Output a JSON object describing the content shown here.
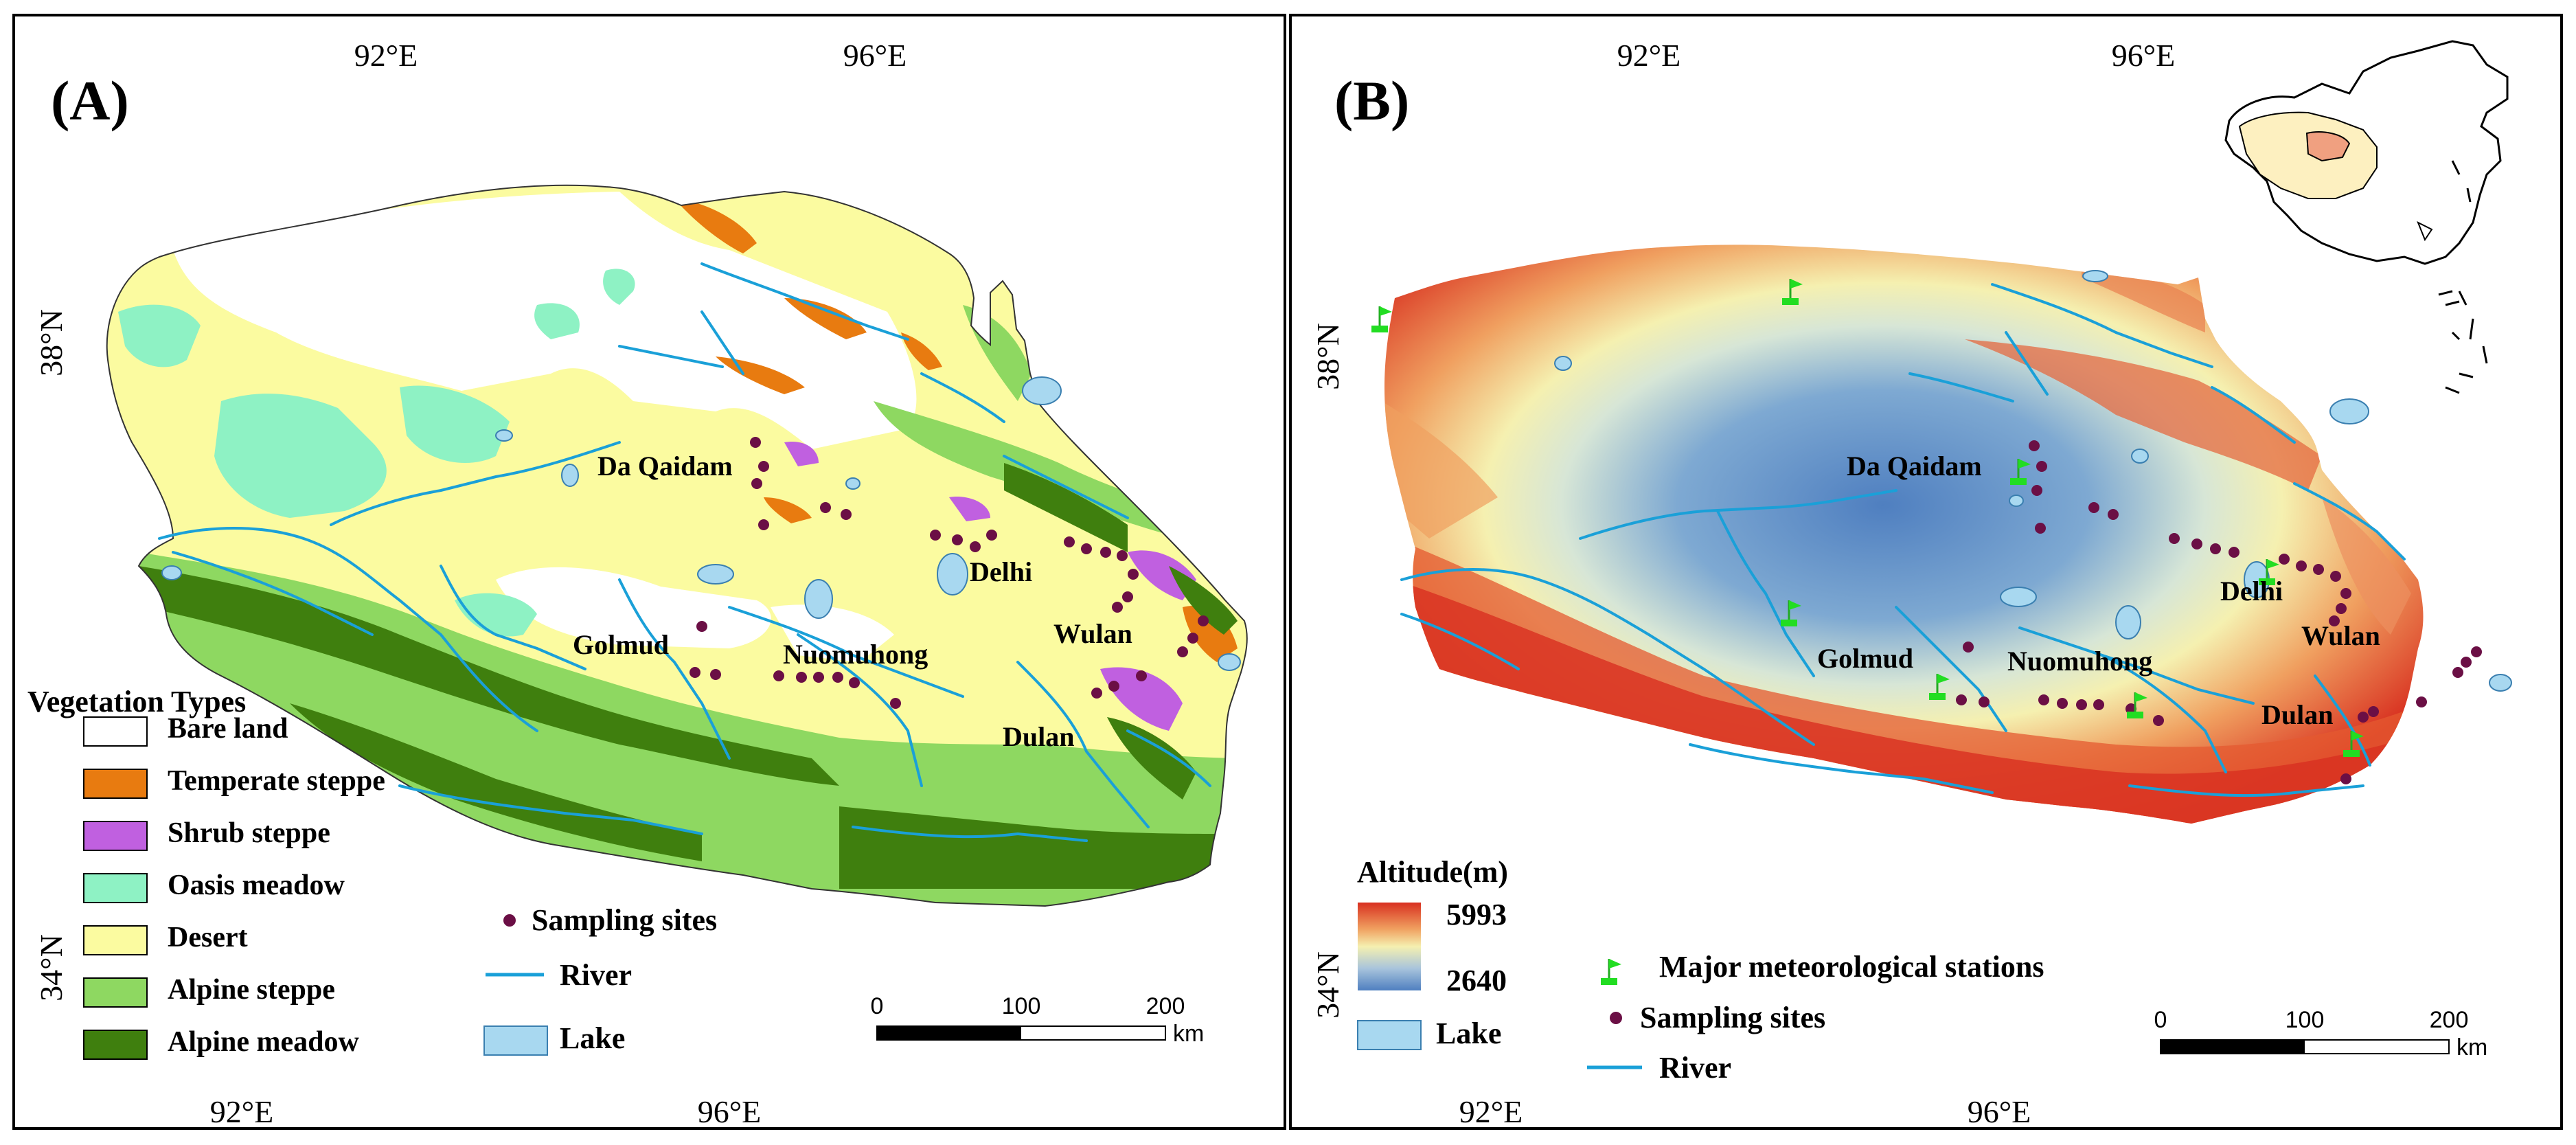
{
  "panel_a": {
    "label": "(A)",
    "ticks": {
      "top": [
        "92°E",
        "96°E"
      ],
      "bottom": [
        "92°E",
        "96°E"
      ],
      "left": [
        "38°N",
        "34°N"
      ]
    },
    "places": [
      "Da Qaidam",
      "Delhi",
      "Golmud",
      "Nuomuhong",
      "Wulan",
      "Dulan"
    ],
    "legend": {
      "title": "Vegetation Types",
      "items": [
        {
          "label": "Bare land",
          "color": "#ffffff"
        },
        {
          "label": "Temperate steppe",
          "color": "#e87b10"
        },
        {
          "label": "Shrub steppe",
          "color": "#c060e0"
        },
        {
          "label": "Oasis meadow",
          "color": "#8ef2c4"
        },
        {
          "label": "Desert",
          "color": "#fbfba0"
        },
        {
          "label": "Alpine steppe",
          "color": "#8ed861"
        },
        {
          "label": "Alpine meadow",
          "color": "#3f7f0e"
        }
      ],
      "sampling": "Sampling sites",
      "river": "River",
      "lake": "Lake"
    },
    "scalebar": {
      "labels": [
        "0",
        "100",
        "200"
      ],
      "unit": "km"
    }
  },
  "panel_b": {
    "label": "(B)",
    "ticks": {
      "top": [
        "92°E",
        "96°E"
      ],
      "bottom": [
        "92°E",
        "96°E"
      ],
      "left": [
        "38°N",
        "34°N"
      ]
    },
    "places": [
      "Da Qaidam",
      "Delhi",
      "Golmud",
      "Nuomuhong",
      "Wulan",
      "Dulan"
    ],
    "altitude": {
      "title": "Altitude(m)",
      "max": "5993",
      "min": "2640"
    },
    "legend": {
      "stations": "Major meteorological stations",
      "sampling": "Sampling sites",
      "lake": "Lake",
      "river": "River"
    },
    "scalebar": {
      "labels": [
        "0",
        "100",
        "200"
      ],
      "unit": "km"
    }
  },
  "colors": {
    "sampling": "#6b0f45",
    "river": "#1aa0d8",
    "lake": "#a8d8f0",
    "station": "#22dd22",
    "elev_low": "#4f7fc0",
    "elev_mid": "#f5f0b0",
    "elev_high": "#d83020"
  }
}
